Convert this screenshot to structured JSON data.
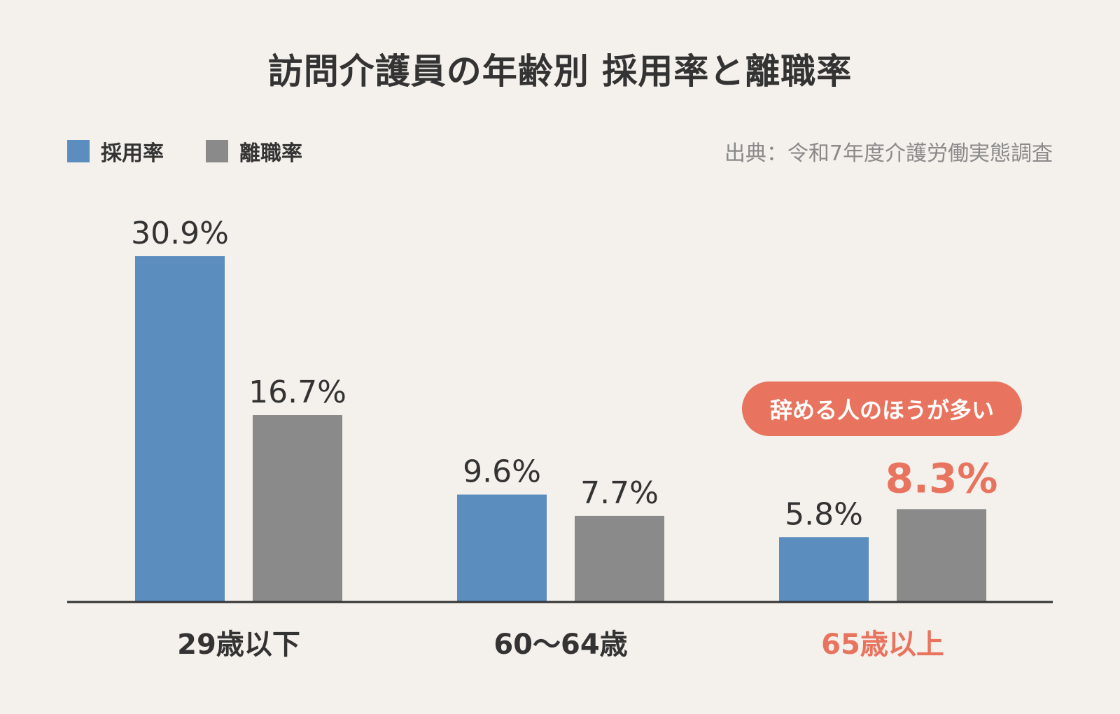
{
  "title": "訪問介護員の年齢別 採用率と離職率",
  "source": "出典：令和7年度介護労働実態調査",
  "legend": [
    {
      "label": "採用率",
      "color": "#5b8dbf"
    },
    {
      "label": "離職率",
      "color": "#8a8a8a"
    }
  ],
  "callout": "辞める人のほうが多い",
  "highlight_color": "#e8735e",
  "chart_data": {
    "type": "bar",
    "title": "訪問介護員の年齢別 採用率と離職率",
    "categories": [
      "29歳以下",
      "60〜64歳",
      "65歳以上"
    ],
    "series": [
      {
        "name": "採用率",
        "values": [
          30.9,
          9.6,
          5.8
        ],
        "labels": [
          "30.9%",
          "9.6%",
          "5.8%"
        ],
        "color": "#5b8dbf"
      },
      {
        "name": "離職率",
        "values": [
          16.7,
          7.7,
          8.3
        ],
        "labels": [
          "16.7%",
          "7.7%",
          "8.3%"
        ],
        "color": "#8a8a8a"
      }
    ],
    "highlight": {
      "category": "65歳以上",
      "series": "離職率"
    },
    "ylim": [
      0,
      30.9
    ],
    "grid": false,
    "legend": "top-left"
  }
}
